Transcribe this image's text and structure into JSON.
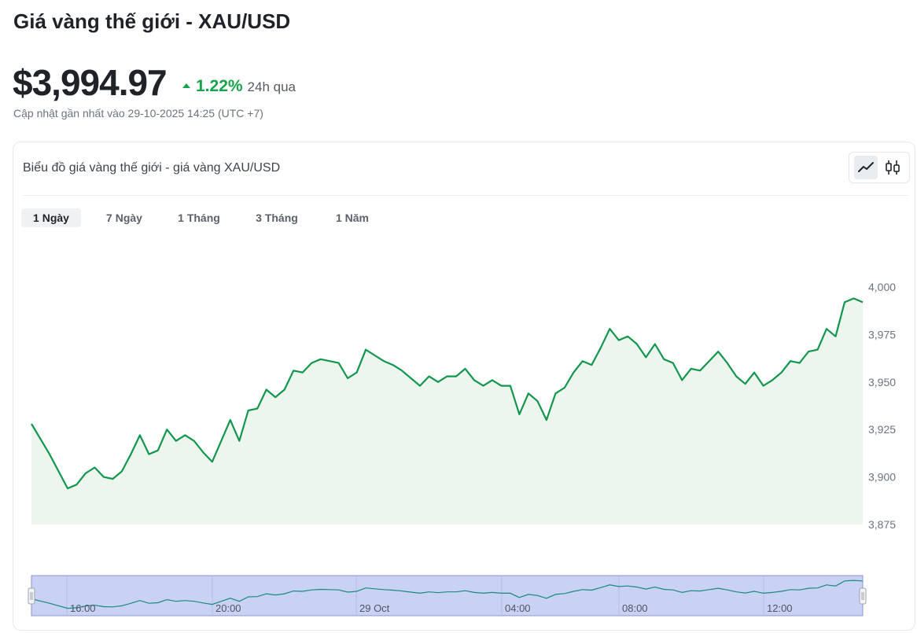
{
  "header": {
    "title": "Giá vàng thế giới - XAU/USD",
    "price": "$3,994.97",
    "change": "1.22%",
    "change_period": "24h qua",
    "updated": "Cập nhật gần nhất vào 29-10-2025 14:25 (UTC +7)"
  },
  "card": {
    "title": "Biểu đồ giá vàng thế giới - giá vàng XAU/USD",
    "chart_types": [
      {
        "name": "line",
        "icon": "line-chart-icon",
        "active": true
      },
      {
        "name": "candlestick",
        "icon": "candlestick-icon",
        "active": false
      }
    ],
    "ranges": [
      {
        "label": "1 Ngày",
        "active": true
      },
      {
        "label": "7 Ngày",
        "active": false
      },
      {
        "label": "1 Tháng",
        "active": false
      },
      {
        "label": "3 Tháng",
        "active": false
      },
      {
        "label": "1 Năm",
        "active": false
      }
    ]
  },
  "colors": {
    "up": "#16a34a",
    "line": "#12964e",
    "area": "#ecf6ef",
    "navigator_fill": "#c9d2f5",
    "navigator_line": "#1a8a7a"
  },
  "chart_data": {
    "type": "area",
    "title": "",
    "xlabel": "",
    "ylabel": "",
    "ylim": [
      3875,
      4000
    ],
    "yticks": [
      3875,
      3900,
      3925,
      3950,
      3975,
      4000
    ],
    "ytick_labels": [
      "3,875",
      "3,900",
      "3,925",
      "3,950",
      "3,975",
      "4,000"
    ],
    "grid": false,
    "series": [
      {
        "values": [
          3928,
          3920,
          3912,
          3903,
          3894,
          3896,
          3902,
          3905,
          3900,
          3899,
          3903,
          3912,
          3922,
          3912,
          3914,
          3925,
          3919,
          3922,
          3919,
          3913,
          3908,
          3919,
          3930,
          3919,
          3935,
          3936,
          3946,
          3942,
          3946,
          3956,
          3955,
          3960,
          3962,
          3961,
          3960,
          3952,
          3955,
          3967,
          3964,
          3961,
          3959,
          3956,
          3952,
          3948,
          3953,
          3950,
          3953,
          3953,
          3957,
          3951,
          3948,
          3951,
          3948,
          3948,
          3933,
          3944,
          3940,
          3930,
          3944,
          3947,
          3955,
          3961,
          3959,
          3968,
          3978,
          3972,
          3974,
          3970,
          3963,
          3970,
          3962,
          3960,
          3951,
          3957,
          3956,
          3961,
          3966,
          3960,
          3953,
          3949,
          3955,
          3948,
          3951,
          3955,
          3961,
          3960,
          3966,
          3967,
          3978,
          3974,
          3992,
          3994,
          3992
        ]
      }
    ],
    "navigator": {
      "x_labels": [
        "16:00",
        "20:00",
        "29 Oct",
        "04:00",
        "08:00",
        "12:00"
      ]
    }
  }
}
